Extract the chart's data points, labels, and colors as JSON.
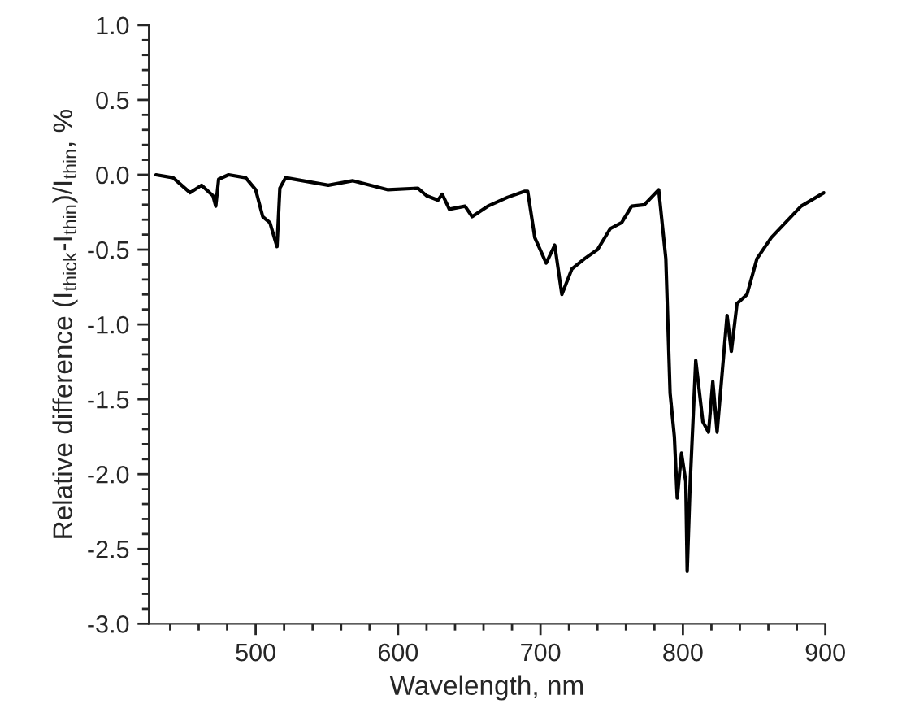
{
  "chart_data": {
    "type": "line",
    "xlabel": "Wavelength, nm",
    "ylabel": "Relative difference (I$_{thick}$-I$_{thin}$)/I$_{thin}$, %",
    "x": [
      430,
      442,
      454,
      462,
      470,
      472,
      474,
      481,
      493,
      500,
      505,
      510,
      515,
      517,
      521,
      551,
      568,
      593,
      614,
      620,
      628,
      631,
      636,
      647,
      652,
      663,
      677,
      689,
      691,
      696,
      704,
      710,
      715,
      722,
      731,
      740,
      749,
      757,
      764,
      773,
      783,
      788,
      791,
      794,
      796,
      799,
      802,
      803,
      805,
      809,
      814,
      818,
      821,
      824,
      831,
      834,
      838,
      845,
      852,
      862,
      872,
      883,
      899
    ],
    "series": [
      {
        "color": "#000000",
        "values": [
          0.0,
          -0.02,
          -0.12,
          -0.07,
          -0.14,
          -0.21,
          -0.03,
          0.0,
          -0.02,
          -0.1,
          -0.28,
          -0.32,
          -0.48,
          -0.09,
          -0.02,
          -0.07,
          -0.04,
          -0.1,
          -0.09,
          -0.14,
          -0.17,
          -0.13,
          -0.23,
          -0.21,
          -0.28,
          -0.21,
          -0.15,
          -0.11,
          -0.11,
          -0.42,
          -0.59,
          -0.47,
          -0.8,
          -0.63,
          -0.56,
          -0.5,
          -0.36,
          -0.32,
          -0.21,
          -0.2,
          -0.1,
          -0.56,
          -1.46,
          -1.75,
          -2.16,
          -1.86,
          -2.05,
          -2.65,
          -2.08,
          -1.24,
          -1.65,
          -1.72,
          -1.38,
          -1.72,
          -0.94,
          -1.18,
          -0.86,
          -0.8,
          -0.56,
          -0.42,
          -0.32,
          -0.21,
          -0.12
        ]
      }
    ],
    "xlim": [
      425,
      900
    ],
    "xticks": [
      500,
      600,
      700,
      800,
      900
    ],
    "ylim": [
      -3.0,
      1.0
    ],
    "yticks": [
      {
        "value": -3.0,
        "label": "-3.0"
      },
      {
        "value": -2.5,
        "label": "-2.5"
      },
      {
        "value": -2.0,
        "label": "-2.0"
      },
      {
        "value": -1.5,
        "label": "-1.5"
      },
      {
        "value": -1.0,
        "label": "-1.0"
      },
      {
        "value": -0.5,
        "label": "-0.5"
      },
      {
        "value": 0.0,
        "label": "0.0"
      },
      {
        "value": 0.5,
        "label": "0.5"
      },
      {
        "value": 1.0,
        "label": "1.0"
      }
    ],
    "grid": false,
    "marker": "none",
    "line_style": "solid"
  }
}
